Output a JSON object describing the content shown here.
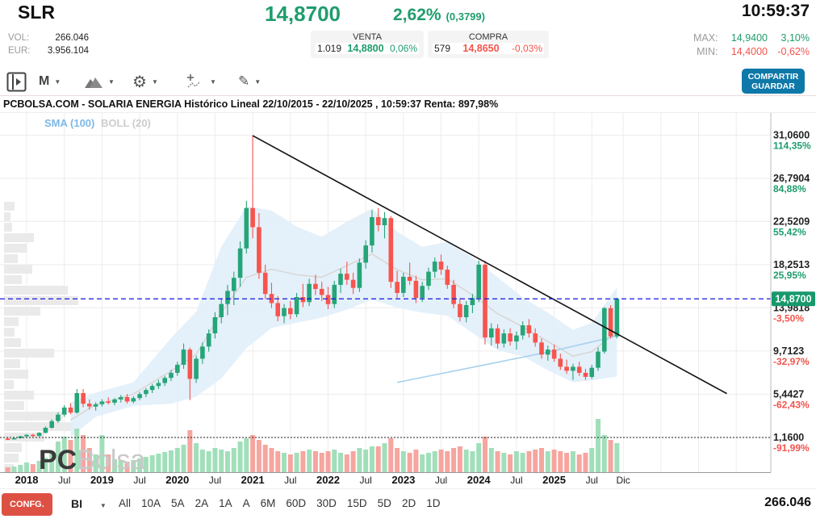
{
  "header": {
    "symbol": "SLR",
    "vol_label": "VOL:",
    "vol_value": "266.046",
    "eur_label": "EUR:",
    "eur_value": "3.956.104",
    "price": "14,8700",
    "change_pct": "2,62%",
    "change_abs": "(0,3799)",
    "venta": {
      "label": "VENTA",
      "qty": "1.019",
      "price": "14,8800",
      "pct": "0,06%"
    },
    "compra": {
      "label": "COMPRA",
      "qty": "579",
      "price": "14,8650",
      "pct": "-0,03%"
    },
    "time": "10:59:37",
    "max_label": "MAX:",
    "max_value": "14,9400",
    "max_pct": "3,10%",
    "min_label": "MIN:",
    "min_value": "14,4000",
    "min_pct": "-0,62%"
  },
  "toolbar": {
    "interval": "M",
    "share_line1": "COMPARTIR",
    "share_line2": "GUARDAR"
  },
  "title_bar": "PCBOLSA.COM - SOLARIA ENERGIA Histórico Lineal 22/10/2015 - 22/10/2025 , 10:59:37 Renta: 897,98%",
  "bottom_bar": {
    "confg": "CONFG.",
    "style": "BI",
    "ranges": [
      "All",
      "10A",
      "5A",
      "2A",
      "1A",
      "A",
      "6M",
      "60D",
      "30D",
      "15D",
      "5D",
      "2D",
      "1D"
    ],
    "volume": "266.046"
  },
  "colors": {
    "green": "#1f9d6d",
    "red": "#f4544c",
    "candle_up": "#26a578",
    "candle_down": "#f8544e",
    "vol_up": "#97dbb2",
    "vol_down": "#f59b95",
    "band_fill": "#e1eefa",
    "boll_mid": "#d8d2ca",
    "sma_line": "#a9d2ee",
    "grid": "#ececec",
    "profile": "#e9e9e9",
    "price_line": "#1515e0",
    "tag_bg": "#17996b",
    "trend": "#111111"
  },
  "chart_data": {
    "type": "candlestick",
    "title": "PCBOLSA.COM - SOLARIA ENERGIA Histórico Lineal 22/10/2015 - 22/10/2025",
    "legend": {
      "sma": "SMA (100)",
      "boll": "BOLL (20)"
    },
    "watermark": {
      "bold": "PC",
      "light": "Bolsa"
    },
    "start_month": "2017-10",
    "current_price": 14.87,
    "current_price_label": "14,8700",
    "base_line_value": 1.16,
    "ylim": [
      -2.3,
      33.2
    ],
    "y_ticks": [
      {
        "v": 31.06,
        "label": "31,0600",
        "pct": "114,35%",
        "positive": true
      },
      {
        "v": 26.7904,
        "label": "26,7904",
        "pct": "84,88%",
        "positive": true
      },
      {
        "v": 22.5209,
        "label": "22,5209",
        "pct": "55,42%",
        "positive": true
      },
      {
        "v": 18.2513,
        "label": "18,2513",
        "pct": "25,95%",
        "positive": true
      },
      {
        "v": 13.9818,
        "label": "13,9818",
        "pct": "-3,50%",
        "positive": false
      },
      {
        "v": 9.7123,
        "label": "9,7123",
        "pct": "-32,97%",
        "positive": false
      },
      {
        "v": 5.4427,
        "label": "5,4427",
        "pct": "-62,43%",
        "positive": false
      },
      {
        "v": 1.16,
        "label": "1,1600",
        "pct": "-91,99%",
        "positive": false
      }
    ],
    "x_ticks": [
      {
        "i": 3,
        "label": "2018",
        "bold": true
      },
      {
        "i": 9,
        "label": "Jul"
      },
      {
        "i": 15,
        "label": "2019",
        "bold": true
      },
      {
        "i": 21,
        "label": "Jul"
      },
      {
        "i": 27,
        "label": "2020",
        "bold": true
      },
      {
        "i": 33,
        "label": "Jul"
      },
      {
        "i": 39,
        "label": "2021",
        "bold": true
      },
      {
        "i": 45,
        "label": "Jul"
      },
      {
        "i": 51,
        "label": "2022",
        "bold": true
      },
      {
        "i": 57,
        "label": "Jul"
      },
      {
        "i": 63,
        "label": "2023",
        "bold": true
      },
      {
        "i": 69,
        "label": "Jul"
      },
      {
        "i": 75,
        "label": "2024",
        "bold": true
      },
      {
        "i": 81,
        "label": "Jul"
      },
      {
        "i": 87,
        "label": "2025",
        "bold": true
      },
      {
        "i": 93,
        "label": "Jul"
      },
      {
        "i": 98,
        "label": "Dic"
      }
    ],
    "extra_grid_i": [
      104,
      110,
      116
    ],
    "candles": [
      [
        1.05,
        1.18,
        0.98,
        1.02
      ],
      [
        1.02,
        1.14,
        0.96,
        1.1
      ],
      [
        1.1,
        1.32,
        1.05,
        1.27
      ],
      [
        1.27,
        1.48,
        1.21,
        1.42
      ],
      [
        1.42,
        1.52,
        1.24,
        1.3
      ],
      [
        1.3,
        1.68,
        1.27,
        1.62
      ],
      [
        1.62,
        2.25,
        1.57,
        2.12
      ],
      [
        2.12,
        2.95,
        2.02,
        2.78
      ],
      [
        2.78,
        3.65,
        2.6,
        3.42
      ],
      [
        3.42,
        4.35,
        3.2,
        4.12
      ],
      [
        4.12,
        4.55,
        3.45,
        3.62
      ],
      [
        3.62,
        5.95,
        3.5,
        5.55
      ],
      [
        5.55,
        5.95,
        4.15,
        4.5
      ],
      [
        4.5,
        4.92,
        3.92,
        4.22
      ],
      [
        4.22,
        4.65,
        3.82,
        4.45
      ],
      [
        4.45,
        4.95,
        4.22,
        4.72
      ],
      [
        4.72,
        5.12,
        4.42,
        4.6
      ],
      [
        4.6,
        5.05,
        4.35,
        4.92
      ],
      [
        4.92,
        5.35,
        4.62,
        5.15
      ],
      [
        5.15,
        5.45,
        4.52,
        4.72
      ],
      [
        4.72,
        5.25,
        4.55,
        5.05
      ],
      [
        5.05,
        5.65,
        4.85,
        5.45
      ],
      [
        5.45,
        6.05,
        5.15,
        5.85
      ],
      [
        5.85,
        6.45,
        5.55,
        6.25
      ],
      [
        6.25,
        6.85,
        5.95,
        6.55
      ],
      [
        6.55,
        7.25,
        6.25,
        7.05
      ],
      [
        7.05,
        7.85,
        6.75,
        7.55
      ],
      [
        7.55,
        8.65,
        7.25,
        8.35
      ],
      [
        8.35,
        10.45,
        7.95,
        9.85
      ],
      [
        9.85,
        10.05,
        4.85,
        6.95
      ],
      [
        6.95,
        9.25,
        6.55,
        8.95
      ],
      [
        8.95,
        10.55,
        8.45,
        10.15
      ],
      [
        10.15,
        11.85,
        9.65,
        11.45
      ],
      [
        11.45,
        13.55,
        10.95,
        13.05
      ],
      [
        13.05,
        14.85,
        12.45,
        14.35
      ],
      [
        14.35,
        16.25,
        13.25,
        15.65
      ],
      [
        15.65,
        17.55,
        14.25,
        16.95
      ],
      [
        16.95,
        20.55,
        16.05,
        19.85
      ],
      [
        19.85,
        24.55,
        19.35,
        23.85
      ],
      [
        23.85,
        31.06,
        20.85,
        21.95
      ],
      [
        21.95,
        23.35,
        16.85,
        17.45
      ],
      [
        17.45,
        18.25,
        14.85,
        15.35
      ],
      [
        15.35,
        16.45,
        13.95,
        14.45
      ],
      [
        14.45,
        15.15,
        12.65,
        13.15
      ],
      [
        13.15,
        14.35,
        12.45,
        13.95
      ],
      [
        13.95,
        14.65,
        12.85,
        13.35
      ],
      [
        13.35,
        15.45,
        13.05,
        15.05
      ],
      [
        15.05,
        16.35,
        14.05,
        14.55
      ],
      [
        14.55,
        16.85,
        14.15,
        16.35
      ],
      [
        16.35,
        17.25,
        15.25,
        15.85
      ],
      [
        15.85,
        16.55,
        14.65,
        15.25
      ],
      [
        15.25,
        16.05,
        13.85,
        14.35
      ],
      [
        14.35,
        16.65,
        13.95,
        16.25
      ],
      [
        16.25,
        17.85,
        15.45,
        17.35
      ],
      [
        17.35,
        18.55,
        16.25,
        16.75
      ],
      [
        16.75,
        17.45,
        15.35,
        15.95
      ],
      [
        15.95,
        18.85,
        15.55,
        18.45
      ],
      [
        18.45,
        20.65,
        17.85,
        20.15
      ],
      [
        20.15,
        23.65,
        19.45,
        22.95
      ],
      [
        22.95,
        23.85,
        21.55,
        22.15
      ],
      [
        22.15,
        23.45,
        20.85,
        22.85
      ],
      [
        22.85,
        23.05,
        15.95,
        16.55
      ],
      [
        16.55,
        17.65,
        14.95,
        15.45
      ],
      [
        15.45,
        17.45,
        15.05,
        17.05
      ],
      [
        17.05,
        18.45,
        16.25,
        16.65
      ],
      [
        16.65,
        17.15,
        14.45,
        14.95
      ],
      [
        14.95,
        16.55,
        14.55,
        16.15
      ],
      [
        16.15,
        17.95,
        15.75,
        17.55
      ],
      [
        17.55,
        18.95,
        16.95,
        18.55
      ],
      [
        18.55,
        19.25,
        17.25,
        17.75
      ],
      [
        17.75,
        18.15,
        15.85,
        16.25
      ],
      [
        16.25,
        16.75,
        13.95,
        14.35
      ],
      [
        14.35,
        14.95,
        12.65,
        13.05
      ],
      [
        13.05,
        14.65,
        12.55,
        14.25
      ],
      [
        14.25,
        15.35,
        13.45,
        14.95
      ],
      [
        14.95,
        18.65,
        14.55,
        18.25
      ],
      [
        18.25,
        18.65,
        10.35,
        11.05
      ],
      [
        11.05,
        12.45,
        10.25,
        11.95
      ],
      [
        11.95,
        12.35,
        9.95,
        10.45
      ],
      [
        10.45,
        11.85,
        10.05,
        11.45
      ],
      [
        11.45,
        11.95,
        10.25,
        10.65
      ],
      [
        10.65,
        11.65,
        9.85,
        11.25
      ],
      [
        11.25,
        12.65,
        10.85,
        12.25
      ],
      [
        12.25,
        12.85,
        11.05,
        11.45
      ],
      [
        11.45,
        11.95,
        10.15,
        10.55
      ],
      [
        10.55,
        10.95,
        8.95,
        9.35
      ],
      [
        9.35,
        10.25,
        8.75,
        9.85
      ],
      [
        9.85,
        10.35,
        8.65,
        8.95
      ],
      [
        8.95,
        9.45,
        7.85,
        8.15
      ],
      [
        8.15,
        8.85,
        7.45,
        7.75
      ],
      [
        7.75,
        8.45,
        6.85,
        8.15
      ],
      [
        8.15,
        8.65,
        7.25,
        7.55
      ],
      [
        7.55,
        7.95,
        6.85,
        7.15
      ],
      [
        7.15,
        8.35,
        6.95,
        8.05
      ],
      [
        8.05,
        10.05,
        7.75,
        9.65
      ],
      [
        9.65,
        14.05,
        9.45,
        13.95
      ],
      [
        13.95,
        14.25,
        10.95,
        11.15
      ],
      [
        11.15,
        14.95,
        10.95,
        14.87
      ]
    ],
    "volumes": [
      6,
      7,
      9,
      12,
      10,
      14,
      18,
      26,
      38,
      44,
      40,
      54,
      46,
      30,
      22,
      46,
      22,
      16,
      15,
      13,
      15,
      17,
      19,
      21,
      23,
      25,
      27,
      30,
      34,
      52,
      36,
      28,
      26,
      30,
      28,
      26,
      30,
      38,
      42,
      46,
      40,
      34,
      30,
      26,
      24,
      22,
      24,
      26,
      28,
      26,
      24,
      26,
      28,
      24,
      22,
      26,
      30,
      28,
      32,
      32,
      36,
      42,
      30,
      26,
      24,
      28,
      22,
      24,
      26,
      28,
      26,
      30,
      32,
      28,
      26,
      36,
      44,
      30,
      26,
      24,
      22,
      26,
      24,
      26,
      28,
      30,
      26,
      28,
      26,
      24,
      26,
      22,
      24,
      30,
      66,
      46,
      40,
      36
    ],
    "bollinger": [
      [
        10,
        4.6,
        1.2
      ],
      [
        14,
        5.6,
        3.2
      ],
      [
        20,
        6.6,
        4.3
      ],
      [
        26,
        11.0,
        4.5
      ],
      [
        30,
        13.6,
        5.2
      ],
      [
        34,
        20.0,
        7.0
      ],
      [
        38,
        24.0,
        10.0
      ],
      [
        42,
        23.6,
        12.0
      ],
      [
        46,
        22.0,
        12.5
      ],
      [
        50,
        21.0,
        13.0
      ],
      [
        54,
        22.5,
        13.8
      ],
      [
        58,
        23.8,
        14.8
      ],
      [
        62,
        21.5,
        14.0
      ],
      [
        66,
        20.0,
        13.5
      ],
      [
        70,
        20.5,
        13.2
      ],
      [
        74,
        19.0,
        11.5
      ],
      [
        78,
        17.0,
        9.8
      ],
      [
        82,
        15.0,
        9.2
      ],
      [
        86,
        13.5,
        7.8
      ],
      [
        90,
        11.8,
        6.6
      ],
      [
        93,
        12.5,
        6.8
      ],
      [
        97,
        16.0,
        7.2
      ]
    ],
    "sma100": [
      [
        62,
        6.6
      ],
      [
        70,
        7.6
      ],
      [
        78,
        8.6
      ],
      [
        86,
        9.6
      ],
      [
        93,
        10.6
      ],
      [
        97,
        11.2
      ]
    ],
    "trendline": {
      "i1": 39,
      "v1": 31.0,
      "i2": 114.5,
      "v2": 5.5
    },
    "volume_profile": [
      [
        250,
        13
      ],
      [
        263,
        8
      ],
      [
        276,
        10
      ],
      [
        289,
        37
      ],
      [
        302,
        28
      ],
      [
        315,
        17
      ],
      [
        328,
        35
      ],
      [
        341,
        22
      ],
      [
        354,
        79
      ],
      [
        367,
        92
      ],
      [
        380,
        45
      ],
      [
        393,
        18
      ],
      [
        406,
        13
      ],
      [
        419,
        21
      ],
      [
        432,
        62
      ],
      [
        445,
        20
      ],
      [
        458,
        30
      ],
      [
        471,
        12
      ],
      [
        484,
        37
      ],
      [
        497,
        25
      ],
      [
        510,
        73
      ],
      [
        523,
        88
      ],
      [
        536,
        50
      ],
      [
        549,
        22
      ],
      [
        562,
        18
      ],
      [
        575,
        12
      ]
    ]
  }
}
